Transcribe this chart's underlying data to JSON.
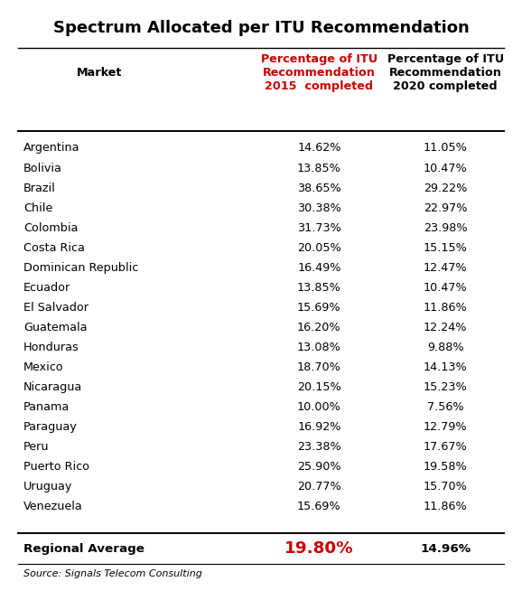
{
  "title": "Spectrum Allocated per ITU Recommendation",
  "col_header_market": "Market",
  "col_header_2015": "Percentage of ITU\nRecommendation\n2015  completed",
  "col_header_2020": "Percentage of ITU\nRecommendation\n2020 completed",
  "markets": [
    "Argentina",
    "Bolivia",
    "Brazil",
    "Chile",
    "Colombia",
    "Costa Rica",
    "Dominican Republic",
    "Ecuador",
    "El Salvador",
    "Guatemala",
    "Honduras",
    "Mexico",
    "Nicaragua",
    "Panama",
    "Paraguay",
    "Peru",
    "Puerto Rico",
    "Uruguay",
    "Venezuela"
  ],
  "pct_2015": [
    "14.62%",
    "13.85%",
    "38.65%",
    "30.38%",
    "31.73%",
    "20.05%",
    "16.49%",
    "13.85%",
    "15.69%",
    "16.20%",
    "13.08%",
    "18.70%",
    "20.15%",
    "10.00%",
    "16.92%",
    "23.38%",
    "25.90%",
    "20.77%",
    "15.69%"
  ],
  "pct_2020": [
    "11.05%",
    "10.47%",
    "29.22%",
    "22.97%",
    "23.98%",
    "15.15%",
    "12.47%",
    "10.47%",
    "11.86%",
    "12.24%",
    "9.88%",
    "14.13%",
    "15.23%",
    "7.56%",
    "12.79%",
    "17.67%",
    "19.58%",
    "15.70%",
    "11.86%"
  ],
  "regional_avg_2015": "19.80%",
  "regional_avg_2020": "14.96%",
  "source": "Source: Signals Telecom Consulting",
  "header_color_2015": "#cc0000",
  "header_color_2020": "#000000",
  "avg_color_2015": "#cc0000",
  "avg_color_2020": "#000000",
  "bg_color": "#ffffff",
  "line_color": "#000000",
  "title_fontsize": 13,
  "header_fontsize": 9.2,
  "body_fontsize": 9.2,
  "source_fontsize": 8
}
